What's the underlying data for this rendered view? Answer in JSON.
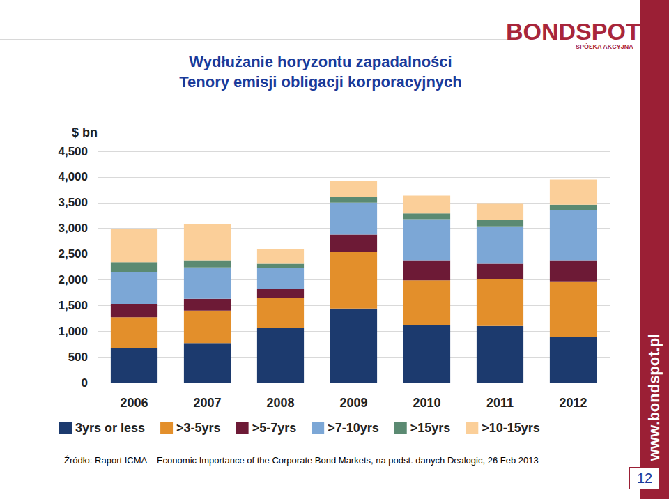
{
  "chart_data": {
    "type": "bar",
    "stacked": true,
    "title": "Wydłużanie horyzontu zapadalności",
    "subtitle": "Tenory emisji obligacji korporacyjnych",
    "y_label": "$ bn",
    "categories": [
      "2006",
      "2007",
      "2008",
      "2009",
      "2010",
      "2011",
      "2012"
    ],
    "series": [
      {
        "name": "3yrs or less",
        "color": "#1c3a6e",
        "values": [
          670,
          770,
          1060,
          1440,
          1120,
          1100,
          880
        ]
      },
      {
        "name": ">3-5yrs",
        "color": "#e38f2b",
        "values": [
          600,
          630,
          590,
          1100,
          870,
          910,
          1090
        ]
      },
      {
        "name": ">5-7yrs",
        "color": "#6d1a36",
        "values": [
          260,
          230,
          170,
          340,
          390,
          300,
          410
        ]
      },
      {
        "name": ">7-10yrs",
        "color": "#7ca7d6",
        "values": [
          620,
          610,
          410,
          620,
          800,
          730,
          970
        ]
      },
      {
        "name": ">15yrs",
        "color": "#5b8a72",
        "values": [
          190,
          140,
          80,
          110,
          110,
          120,
          110
        ]
      },
      {
        "name": ">10-15yrs",
        "color": "#fbcf99",
        "values": [
          650,
          700,
          290,
          320,
          350,
          330,
          490
        ]
      }
    ],
    "ylim": [
      0,
      4500
    ],
    "yticks": [
      0,
      500,
      {
        "value": 1000,
        "label": "1,000"
      },
      {
        "value": 1500,
        "label": "1,500"
      },
      {
        "value": 2000,
        "label": "2,000"
      },
      {
        "value": 2500,
        "label": "2,500"
      },
      {
        "value": 3000,
        "label": "3,000"
      },
      {
        "value": 3500,
        "label": "3,500"
      },
      {
        "value": 4000,
        "label": "4,000"
      },
      {
        "value": 4500,
        "label": "4,500"
      }
    ],
    "grid": true,
    "legend": "bottom"
  },
  "header": {
    "logo": "BONDSPOT",
    "logo_sub": "SPÓŁKA AKCYJNA"
  },
  "source": "Źródło: Raport ICMA – Economic Importance of the Corporate Bond Markets, na podst. danych Dealogic, 26 Feb 2013",
  "sidebar": "www.bondspot.pl",
  "page_number": "12"
}
